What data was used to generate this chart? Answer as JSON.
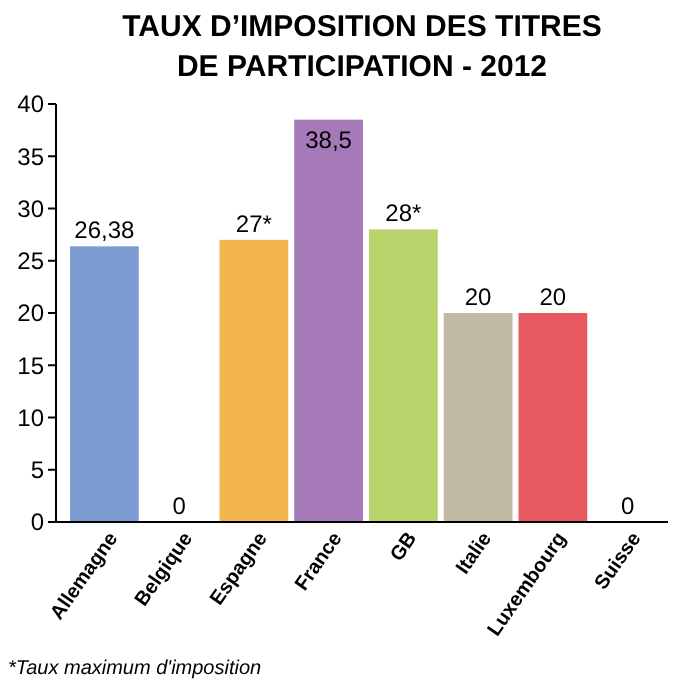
{
  "chart_data": {
    "type": "bar",
    "title": "TAUX D’IMPOSITION DES TITRES\nDE PARTICIPATION - 2012",
    "categories": [
      "Allemagne",
      "Belgique",
      "Espagne",
      "France",
      "GB",
      "Italie",
      "Luxembourg",
      "Suisse"
    ],
    "values": [
      26.38,
      0,
      27,
      38.5,
      28,
      20,
      20,
      0
    ],
    "colors": [
      "#7c9bd0",
      "#9a9a9a",
      "#f2b64c",
      "#a67ab8",
      "#b9d46c",
      "#c2b9a2",
      "#e8585f",
      "#9a9a9a"
    ],
    "value_labels": [
      "26,38",
      "0",
      "27*",
      "38,5",
      "28*",
      "20",
      "20",
      "0"
    ],
    "ylim": [
      0,
      40
    ],
    "yticks": [
      0,
      5,
      10,
      15,
      20,
      25,
      30,
      35,
      40
    ],
    "grid": false,
    "annotations": [
      "*Taux maximum d'imposition"
    ]
  }
}
